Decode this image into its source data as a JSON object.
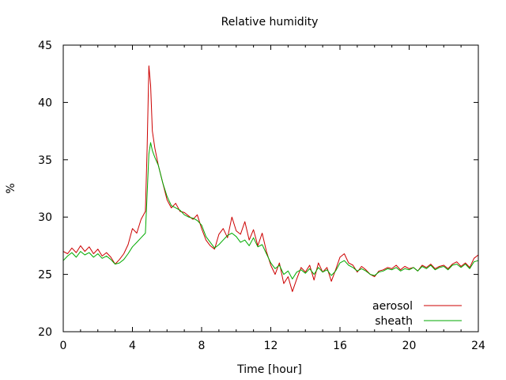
{
  "chart_data": {
    "type": "line",
    "title": "Relative humidity",
    "xlabel": "Time [hour]",
    "ylabel": "%",
    "xlim": [
      0,
      24
    ],
    "ylim": [
      20,
      45
    ],
    "x_ticks": [
      0,
      4,
      8,
      12,
      16,
      20,
      24
    ],
    "y_ticks": [
      20,
      25,
      30,
      35,
      40,
      45
    ],
    "grid": false,
    "legend_position": "bottom-right",
    "series": [
      {
        "name": "aerosol",
        "color": "#cc0000",
        "x": [
          0,
          0.25,
          0.5,
          0.75,
          1,
          1.25,
          1.5,
          1.75,
          2,
          2.25,
          2.5,
          2.75,
          3,
          3.25,
          3.5,
          3.75,
          4,
          4.25,
          4.5,
          4.75,
          4.85,
          4.95,
          5.05,
          5.15,
          5.3,
          5.5,
          5.75,
          6,
          6.25,
          6.5,
          6.75,
          7,
          7.25,
          7.5,
          7.75,
          8,
          8.25,
          8.5,
          8.75,
          9,
          9.25,
          9.5,
          9.75,
          10,
          10.25,
          10.5,
          10.75,
          11,
          11.25,
          11.5,
          11.75,
          12,
          12.25,
          12.5,
          12.75,
          13,
          13.25,
          13.5,
          13.75,
          14,
          14.25,
          14.5,
          14.75,
          15,
          15.25,
          15.5,
          15.75,
          16,
          16.25,
          16.5,
          16.75,
          17,
          17.25,
          17.5,
          17.75,
          18,
          18.25,
          18.5,
          18.75,
          19,
          19.25,
          19.5,
          19.75,
          20,
          20.25,
          20.5,
          20.75,
          21,
          21.25,
          21.5,
          21.75,
          22,
          22.25,
          22.5,
          22.75,
          23,
          23.25,
          23.5,
          23.75,
          24
        ],
        "y": [
          27.0,
          26.8,
          27.3,
          26.9,
          27.5,
          27.0,
          27.4,
          26.8,
          27.2,
          26.6,
          26.9,
          26.5,
          25.9,
          26.3,
          26.8,
          27.6,
          29.0,
          28.6,
          29.8,
          30.5,
          36.0,
          43.2,
          41.5,
          37.5,
          36.0,
          34.5,
          33.0,
          31.5,
          30.8,
          31.2,
          30.5,
          30.4,
          30.1,
          29.8,
          30.2,
          29.0,
          28.0,
          27.5,
          27.2,
          28.5,
          29.0,
          28.2,
          30.0,
          28.8,
          28.5,
          29.6,
          28.0,
          28.9,
          27.5,
          28.6,
          27.0,
          25.8,
          25.0,
          26.0,
          24.2,
          24.8,
          23.5,
          24.6,
          25.6,
          25.2,
          25.8,
          24.5,
          26.0,
          25.2,
          25.6,
          24.4,
          25.4,
          26.5,
          26.8,
          26.0,
          25.8,
          25.2,
          25.7,
          25.4,
          25.0,
          24.8,
          25.3,
          25.4,
          25.6,
          25.5,
          25.8,
          25.4,
          25.7,
          25.5,
          25.6,
          25.3,
          25.8,
          25.6,
          25.9,
          25.5,
          25.7,
          25.8,
          25.5,
          25.9,
          26.1,
          25.7,
          26.0,
          25.6,
          26.4,
          26.7
        ]
      },
      {
        "name": "sheath",
        "color": "#00aa00",
        "x": [
          0,
          0.25,
          0.5,
          0.75,
          1,
          1.25,
          1.5,
          1.75,
          2,
          2.25,
          2.5,
          2.75,
          3,
          3.25,
          3.5,
          3.75,
          4,
          4.25,
          4.5,
          4.75,
          4.85,
          4.95,
          5.05,
          5.15,
          5.3,
          5.5,
          5.75,
          6,
          6.25,
          6.5,
          6.75,
          7,
          7.25,
          7.5,
          7.75,
          8,
          8.25,
          8.5,
          8.75,
          9,
          9.25,
          9.5,
          9.75,
          10,
          10.25,
          10.5,
          10.75,
          11,
          11.25,
          11.5,
          11.75,
          12,
          12.25,
          12.5,
          12.75,
          13,
          13.25,
          13.5,
          13.75,
          14,
          14.25,
          14.5,
          14.75,
          15,
          15.25,
          15.5,
          15.75,
          16,
          16.25,
          16.5,
          16.75,
          17,
          17.25,
          17.5,
          17.75,
          18,
          18.25,
          18.5,
          18.75,
          19,
          19.25,
          19.5,
          19.75,
          20,
          20.25,
          20.5,
          20.75,
          21,
          21.25,
          21.5,
          21.75,
          22,
          22.25,
          22.5,
          22.75,
          23,
          23.25,
          23.5,
          23.75,
          24
        ],
        "y": [
          26.2,
          26.6,
          26.9,
          26.5,
          27.0,
          26.7,
          26.9,
          26.5,
          26.8,
          26.4,
          26.6,
          26.3,
          25.9,
          26.0,
          26.3,
          26.8,
          27.4,
          27.8,
          28.2,
          28.6,
          32.0,
          35.5,
          36.5,
          35.8,
          35.2,
          34.5,
          33.0,
          31.8,
          31.0,
          30.8,
          30.6,
          30.2,
          30.0,
          29.9,
          29.7,
          29.3,
          28.3,
          27.8,
          27.3,
          27.6,
          28.0,
          28.4,
          28.6,
          28.3,
          27.8,
          28.0,
          27.5,
          28.2,
          27.4,
          27.6,
          26.8,
          26.0,
          25.5,
          25.8,
          25.0,
          25.3,
          24.6,
          25.2,
          25.4,
          25.1,
          25.5,
          25.0,
          25.6,
          25.2,
          25.4,
          24.9,
          25.3,
          26.0,
          26.2,
          25.8,
          25.6,
          25.3,
          25.5,
          25.3,
          25.0,
          24.9,
          25.2,
          25.3,
          25.5,
          25.4,
          25.6,
          25.3,
          25.5,
          25.4,
          25.6,
          25.3,
          25.7,
          25.5,
          25.8,
          25.4,
          25.6,
          25.7,
          25.4,
          25.8,
          25.9,
          25.6,
          25.9,
          25.5,
          26.1,
          26.2
        ]
      }
    ]
  }
}
